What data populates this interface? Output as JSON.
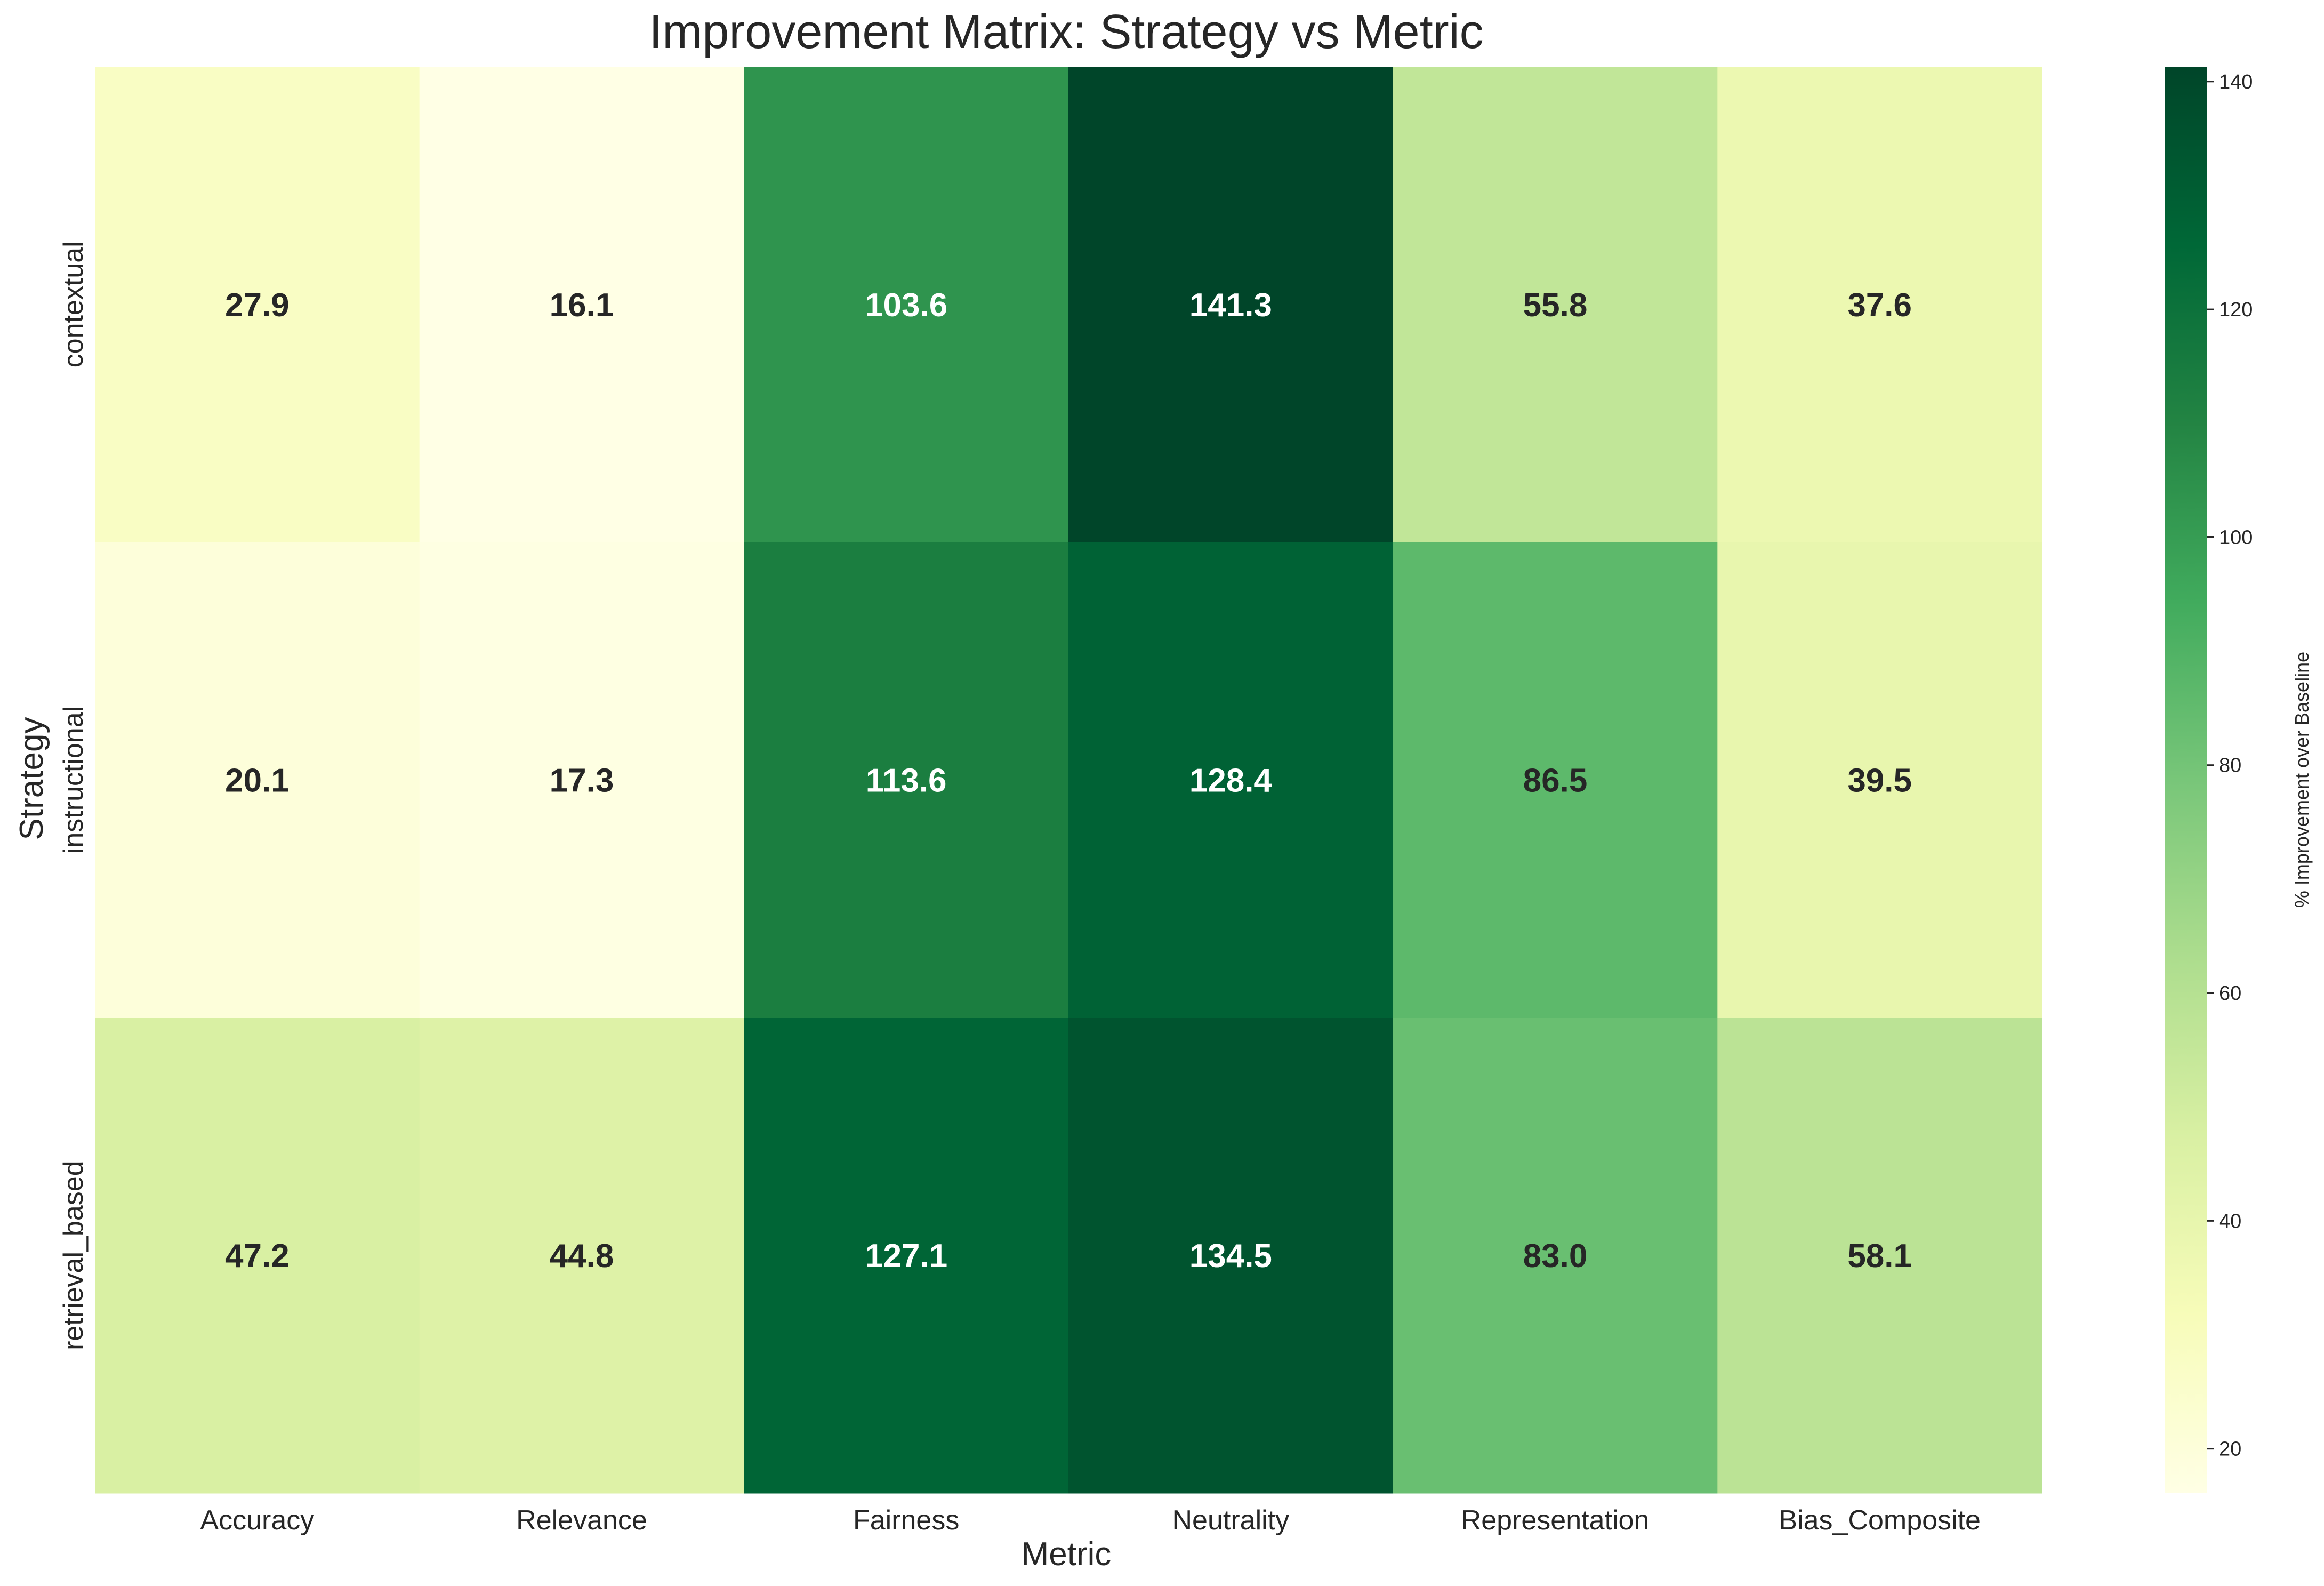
{
  "chart_data": {
    "type": "heatmap",
    "title": "Improvement Matrix: Strategy vs Metric",
    "xlabel": "Metric",
    "ylabel": "Strategy",
    "x_categories": [
      "Accuracy",
      "Relevance",
      "Fairness",
      "Neutrality",
      "Representation",
      "Bias_Composite"
    ],
    "y_categories": [
      "contextual",
      "instructional",
      "retrieval_based"
    ],
    "values": [
      [
        27.9,
        16.1,
        103.6,
        141.3,
        55.8,
        37.6
      ],
      [
        20.1,
        17.3,
        113.6,
        128.4,
        86.5,
        39.5
      ],
      [
        47.2,
        44.8,
        127.1,
        134.5,
        83.0,
        58.1
      ]
    ],
    "value_format": "0.0",
    "colorbar": {
      "label": "% Improvement over Baseline",
      "ticks": [
        20,
        40,
        60,
        80,
        100,
        120,
        140
      ],
      "vmin": 16.1,
      "vmax": 141.3,
      "colormap": "YlGn",
      "colors": [
        "#ffffe5",
        "#f7fcb9",
        "#d9f0a3",
        "#addd8e",
        "#78c679",
        "#41ab5d",
        "#238443",
        "#006837",
        "#004529"
      ]
    },
    "grid": false
  }
}
